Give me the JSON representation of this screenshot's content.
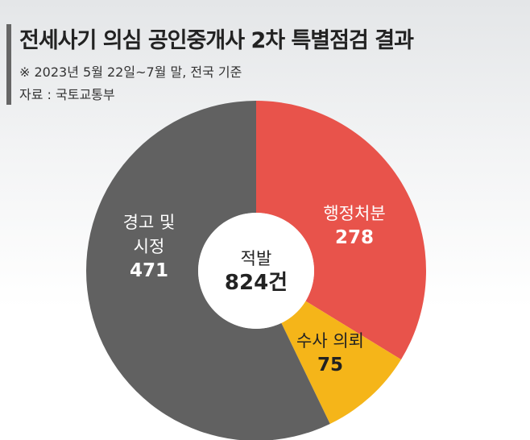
{
  "chart_data": {
    "type": "donut",
    "title": "전세사기 의심 공인중개사 2차 특별점검 결과",
    "subtitle": "※ 2023년 5월 22일~7월 말, 전국 기준",
    "source": "자료 : 국토교통부",
    "center_title": "적발",
    "center_value": "824건",
    "categories": [
      "행정처분",
      "수사 의뢰",
      "경고 및 시정"
    ],
    "values": [
      278,
      75,
      471
    ],
    "colors": [
      "#e8534b",
      "#f5b519",
      "#616161"
    ]
  }
}
